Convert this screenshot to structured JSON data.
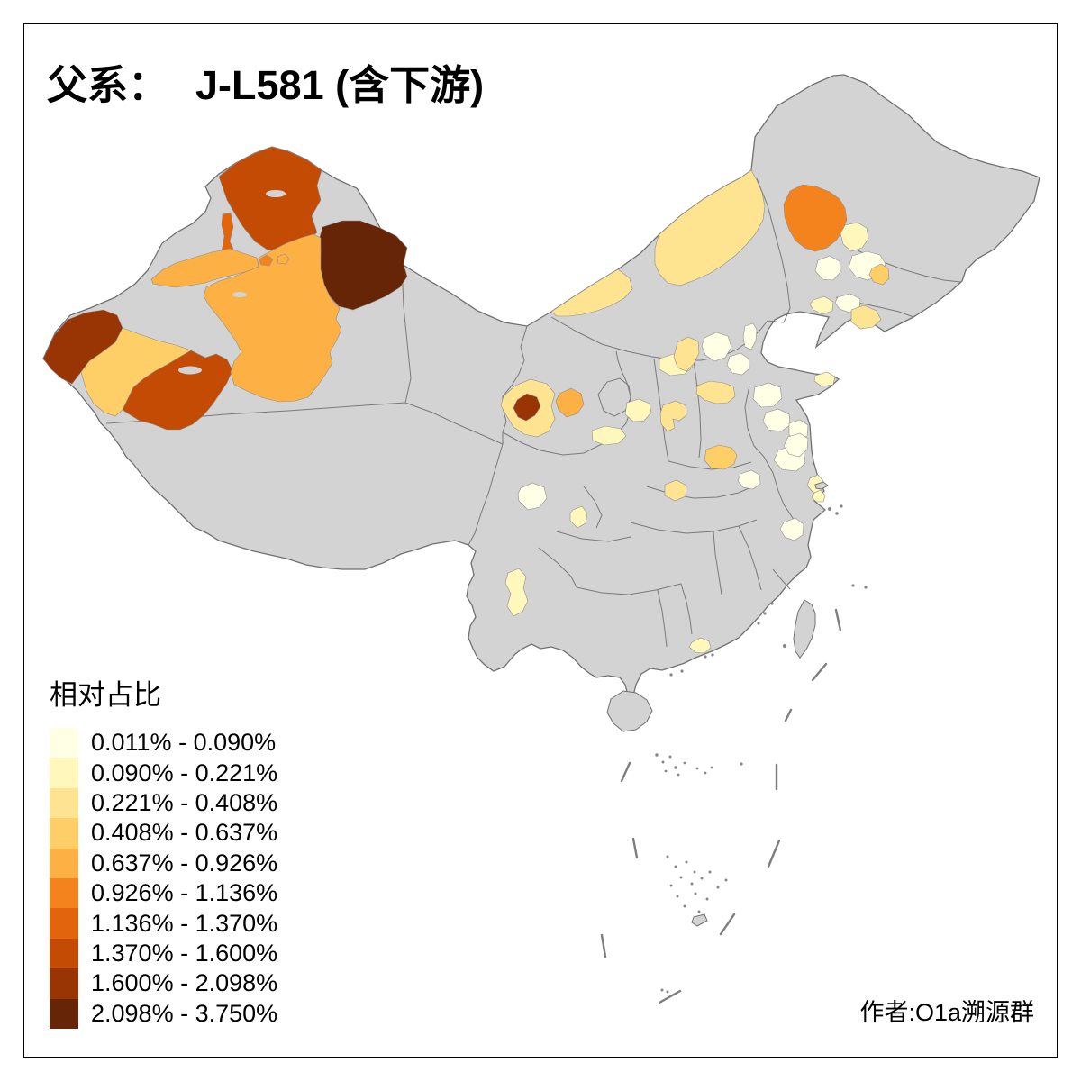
{
  "page": {
    "background": "#FFFFFF",
    "frame_color": "#000000"
  },
  "title": {
    "label": "父系：",
    "value": "J-L581 (含下游)"
  },
  "legend": {
    "title": "相对占比",
    "classes": [
      {
        "label": "0.011% - 0.090%",
        "color": "#FFFFE5"
      },
      {
        "label": "0.090% - 0.221%",
        "color": "#FFF7BC"
      },
      {
        "label": "0.221% - 0.408%",
        "color": "#FEE391"
      },
      {
        "label": "0.408% - 0.637%",
        "color": "#FECF66"
      },
      {
        "label": "0.637% - 0.926%",
        "color": "#FDB044"
      },
      {
        "label": "0.926% - 1.136%",
        "color": "#F5831D"
      },
      {
        "label": "1.136% - 1.370%",
        "color": "#E2650D"
      },
      {
        "label": "1.370% - 1.600%",
        "color": "#C44B04"
      },
      {
        "label": "1.600% - 2.098%",
        "color": "#993404"
      },
      {
        "label": "2.098% - 3.750%",
        "color": "#662506"
      }
    ]
  },
  "attribution": {
    "text": "作者:O1a溯源群"
  },
  "map": {
    "land_fill": "#D3D3D3",
    "boundary_color": "#707070",
    "sea_fill": "#FFFFFF",
    "regions": [
      {
        "id": "xinjiang-altay",
        "class_index": 8
      },
      {
        "id": "xinjiang-karamay",
        "class_index": 7
      },
      {
        "id": "xinjiang-hami",
        "class_index": 10
      },
      {
        "id": "xinjiang-kizilsu",
        "class_index": 9
      },
      {
        "id": "xinjiang-kashgar",
        "class_index": 4
      },
      {
        "id": "xinjiang-hotan",
        "class_index": 8
      },
      {
        "id": "xinjiang-aksu",
        "class_index": 5
      },
      {
        "id": "xinjiang-bayingolin",
        "class_index": 5
      },
      {
        "id": "xinjiang-shihezi-a",
        "class_index": 6
      },
      {
        "id": "xinjiang-shihezi-b",
        "class_index": 5
      },
      {
        "id": "gansu-linxia-dingxi",
        "class_index": 3
      },
      {
        "id": "gansu-lanzhou",
        "class_index": 9
      },
      {
        "id": "gansu-baiyin",
        "class_index": 5
      },
      {
        "id": "gansu-pingliang",
        "class_index": 2
      },
      {
        "id": "shaanxi-yanan",
        "class_index": 2
      },
      {
        "id": "shaanxi-yulin",
        "class_index": 2
      },
      {
        "id": "shanxi-linfen",
        "class_index": 3
      },
      {
        "id": "hebei-shijiazhuang",
        "class_index": 3
      },
      {
        "id": "hebei-south",
        "class_index": 3
      },
      {
        "id": "beijing",
        "class_index": 1
      },
      {
        "id": "tianjin",
        "class_index": 1
      },
      {
        "id": "hebei-zhangjiakou",
        "class_index": 1
      },
      {
        "id": "inner-mongolia-west",
        "class_index": 3
      },
      {
        "id": "inner-mongolia-xilingol",
        "class_index": 3
      },
      {
        "id": "heilongjiang-qiqihar",
        "class_index": 6
      },
      {
        "id": "heilongjiang-suihua",
        "class_index": 2
      },
      {
        "id": "heilongjiang-harbin-a",
        "class_index": 1
      },
      {
        "id": "heilongjiang-harbin-b",
        "class_index": 1
      },
      {
        "id": "jilin-songyuan",
        "class_index": 4
      },
      {
        "id": "jilin-central",
        "class_index": 1
      },
      {
        "id": "liaoning-central",
        "class_index": 2
      },
      {
        "id": "liaoning-dandong",
        "class_index": 3
      },
      {
        "id": "shandong-west",
        "class_index": 1
      },
      {
        "id": "shandong-central",
        "class_index": 1
      },
      {
        "id": "shandong-south",
        "class_index": 1
      },
      {
        "id": "shandong-weihai",
        "class_index": 2
      },
      {
        "id": "jiangsu-north",
        "class_index": 1
      },
      {
        "id": "jiangsu-nantong",
        "class_index": 2
      },
      {
        "id": "shanghai",
        "class_index": 2
      },
      {
        "id": "anhui-north",
        "class_index": 1
      },
      {
        "id": "hubei-east",
        "class_index": 1
      },
      {
        "id": "zhejiang-hangzhou",
        "class_index": 1
      },
      {
        "id": "henan-shangqiu",
        "class_index": 4
      },
      {
        "id": "henan-nanyang",
        "class_index": 3
      },
      {
        "id": "sichuan-chengdu",
        "class_index": 1
      },
      {
        "id": "sichuan-leshan",
        "class_index": 2
      },
      {
        "id": "yunnan-central",
        "class_index": 2
      },
      {
        "id": "guangdong-prd",
        "class_index": 2
      }
    ]
  }
}
